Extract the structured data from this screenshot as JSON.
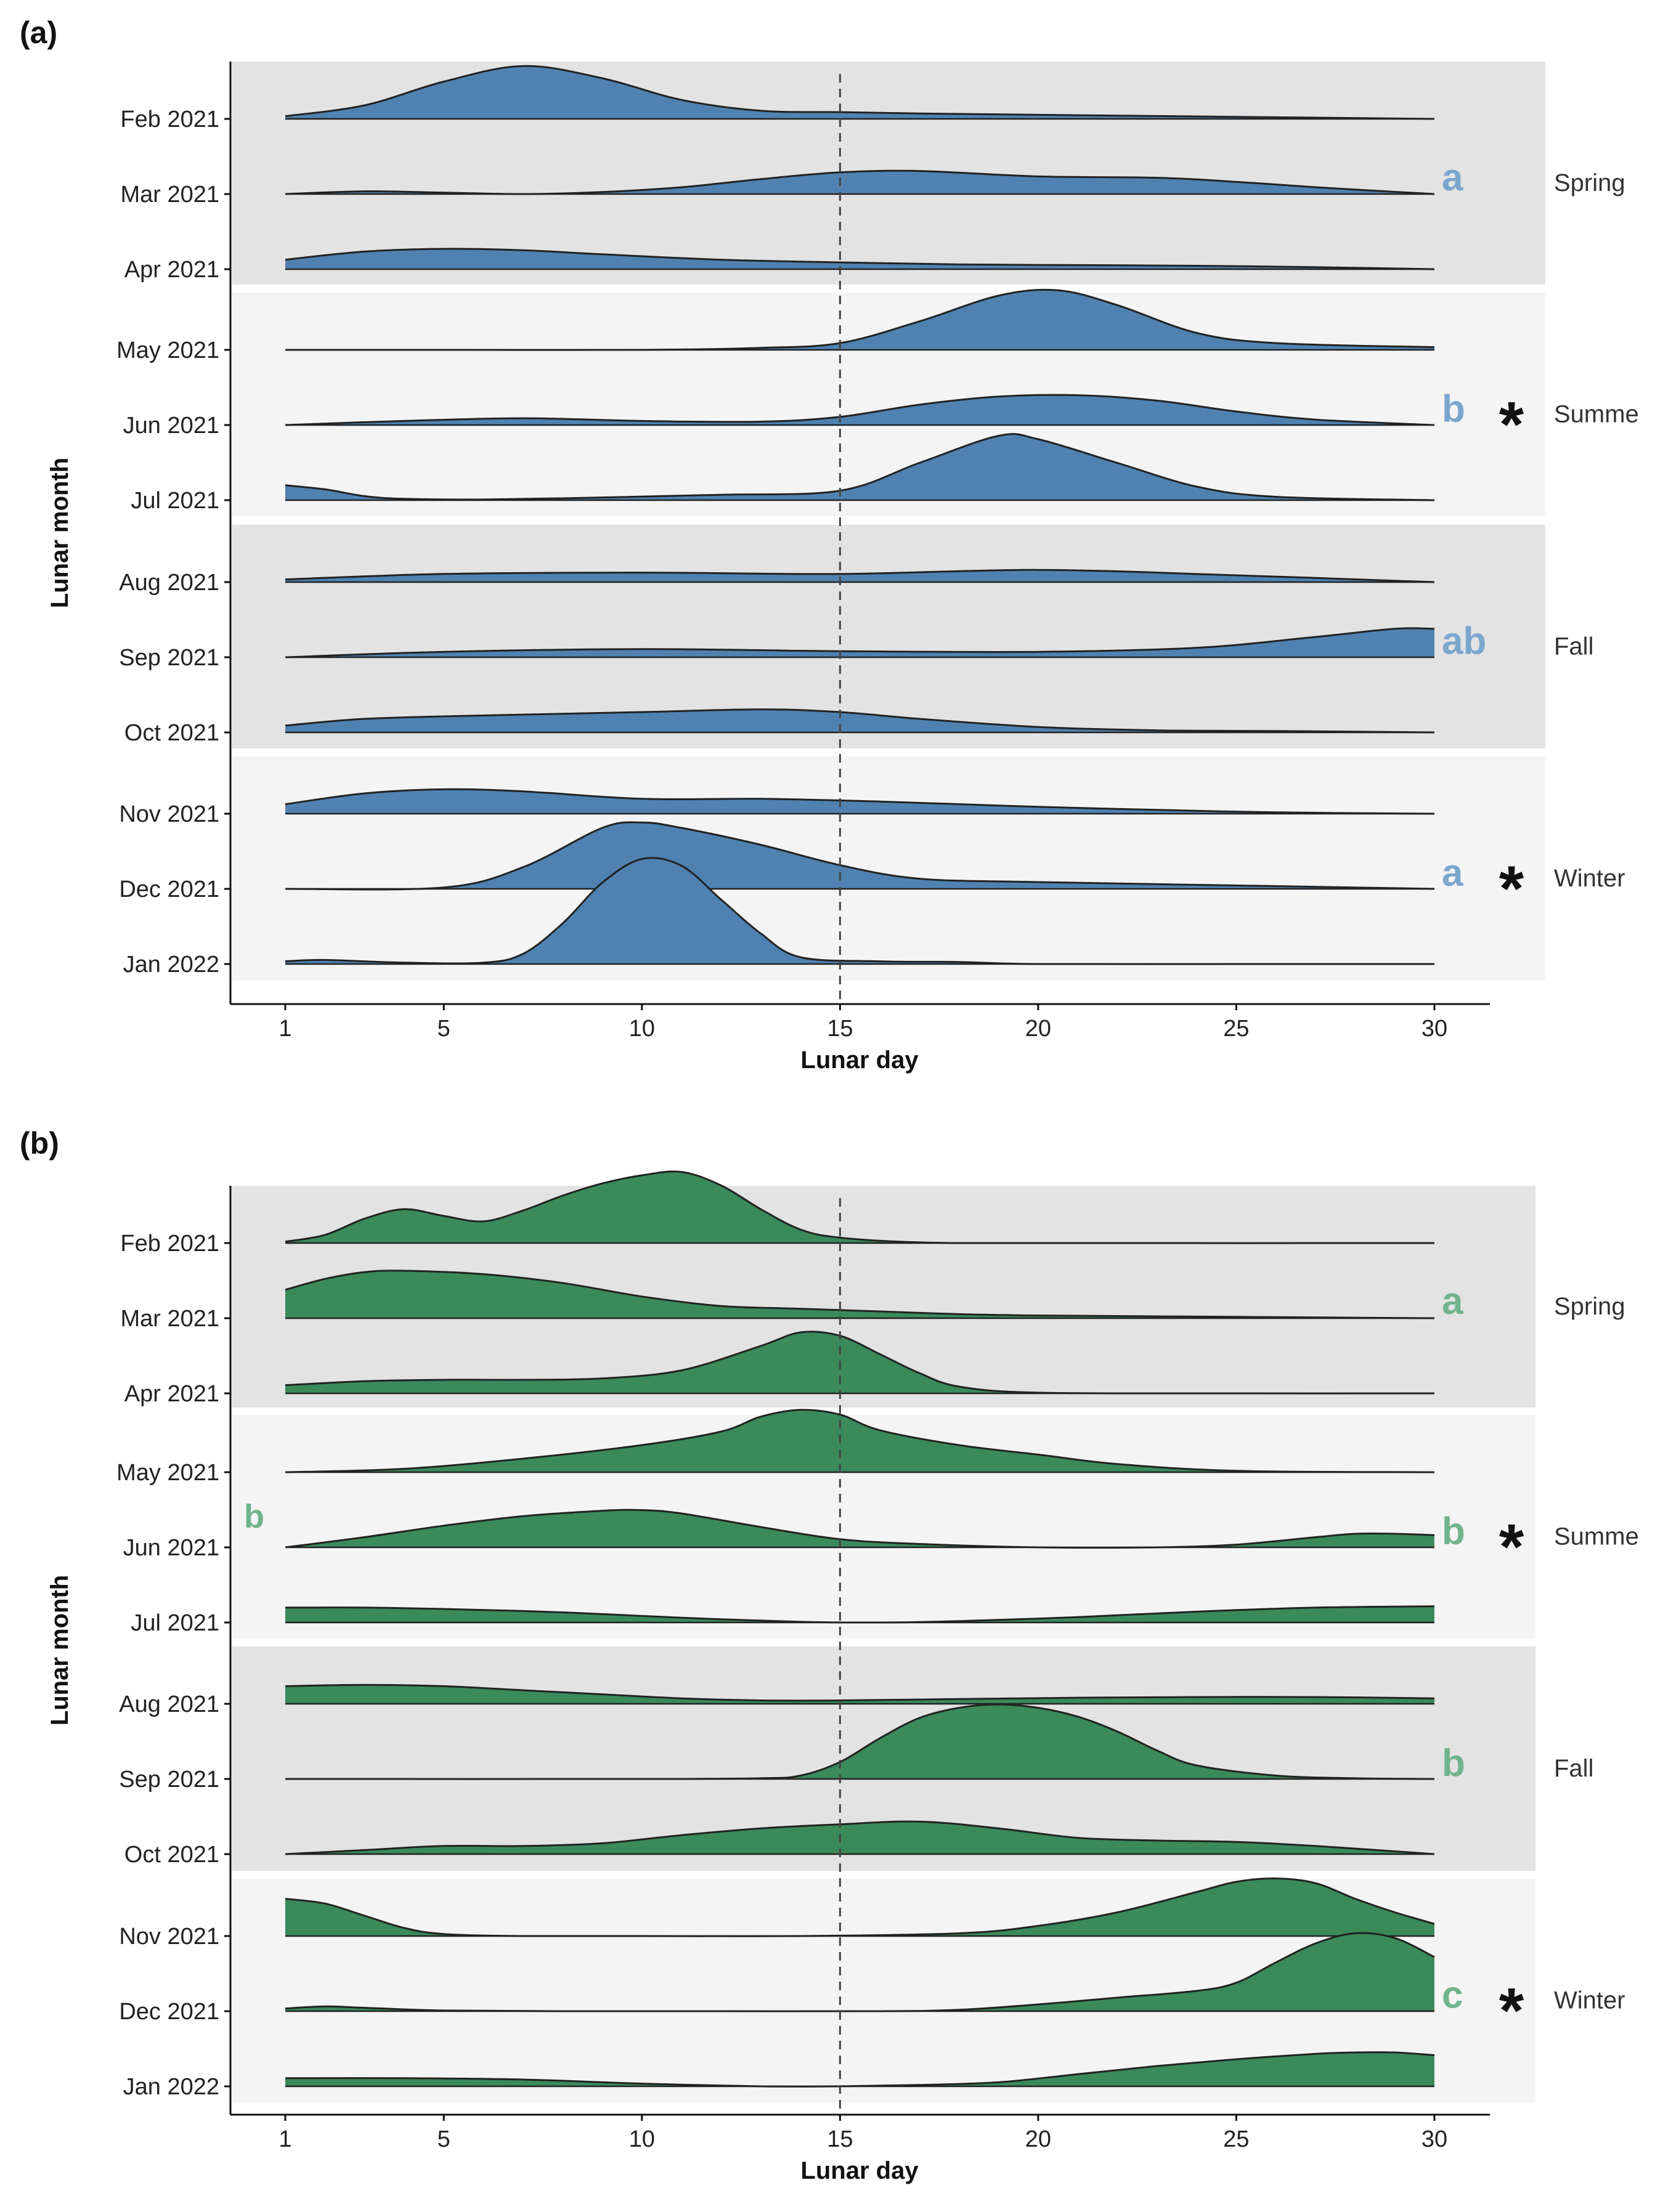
{
  "figure": {
    "panel_labels": [
      "(a)",
      "(b)"
    ],
    "colors": {
      "panel_a_fill": "#4f82b0",
      "panel_a_letter": "#7ba6ce",
      "panel_b_fill": "#3a8a5a",
      "panel_b_letter": "#70b48c",
      "band_dark": "#e3e3e3",
      "band_light": "#f4f4f4",
      "outline": "#222222"
    }
  },
  "chart_data": [
    {
      "type": "ridgeline",
      "panel": "(a)",
      "xlabel": "Lunar day",
      "ylabel": "Lunar month",
      "xlim": [
        1,
        30
      ],
      "xticks": [
        1,
        5,
        10,
        15,
        20,
        25,
        30
      ],
      "reference_line_x": 15,
      "categories": [
        "Feb 2021",
        "Mar 2021",
        "Apr 2021",
        "May 2021",
        "Jun 2021",
        "Jul 2021",
        "Aug 2021",
        "Sep 2021",
        "Oct 2021",
        "Nov 2021",
        "Dec 2021",
        "Jan 2022"
      ],
      "seasons": [
        {
          "name": "Spring",
          "months": [
            "Feb 2021",
            "Mar 2021",
            "Apr 2021"
          ],
          "letter": "a",
          "asterisk": ""
        },
        {
          "name": "Summe",
          "months": [
            "May 2021",
            "Jun 2021",
            "Jul 2021"
          ],
          "letter": "b",
          "asterisk": "*"
        },
        {
          "name": "Fall",
          "months": [
            "Aug 2021",
            "Sep 2021",
            "Oct 2021"
          ],
          "letter": "ab",
          "asterisk": ""
        },
        {
          "name": "Winter",
          "months": [
            "Nov 2021",
            "Dec 2021",
            "Jan 2022"
          ],
          "letter": "a",
          "asterisk": "*"
        }
      ],
      "extra_letter": "",
      "series": [
        {
          "name": "Feb 2021",
          "x": [
            1,
            3,
            5,
            7,
            9,
            11,
            13,
            15,
            17,
            20,
            25,
            30
          ],
          "y": [
            0.04,
            0.2,
            0.55,
            0.78,
            0.6,
            0.28,
            0.12,
            0.1,
            0.08,
            0.06,
            0.03,
            0.0
          ]
        },
        {
          "name": "Mar 2021",
          "x": [
            1,
            3,
            5,
            7,
            9,
            11,
            13,
            15,
            17,
            20,
            23,
            25,
            27,
            30
          ],
          "y": [
            0.0,
            0.04,
            0.02,
            0.0,
            0.03,
            0.1,
            0.22,
            0.32,
            0.34,
            0.26,
            0.24,
            0.18,
            0.1,
            0.0
          ]
        },
        {
          "name": "Apr 2021",
          "x": [
            1,
            3,
            5,
            7,
            9,
            12,
            15,
            18,
            21,
            24,
            27,
            30
          ],
          "y": [
            0.14,
            0.26,
            0.3,
            0.28,
            0.22,
            0.14,
            0.1,
            0.07,
            0.06,
            0.05,
            0.03,
            0.0
          ]
        },
        {
          "name": "May 2021",
          "x": [
            1,
            5,
            10,
            13,
            15,
            17,
            19,
            20.5,
            22,
            24,
            26,
            30
          ],
          "y": [
            0.0,
            0.0,
            0.0,
            0.03,
            0.1,
            0.42,
            0.8,
            0.88,
            0.66,
            0.25,
            0.1,
            0.04
          ]
        },
        {
          "name": "Jun 2021",
          "x": [
            1,
            4,
            7,
            10,
            13,
            15,
            17,
            19,
            21,
            23,
            25,
            27,
            30
          ],
          "y": [
            0.0,
            0.06,
            0.1,
            0.06,
            0.05,
            0.12,
            0.3,
            0.42,
            0.44,
            0.36,
            0.2,
            0.08,
            0.0
          ]
        },
        {
          "name": "Jul 2021",
          "x": [
            1,
            2,
            3,
            4,
            6,
            9,
            12,
            15,
            17,
            19,
            20,
            22,
            24,
            26,
            30
          ],
          "y": [
            0.22,
            0.16,
            0.06,
            0.02,
            0.01,
            0.04,
            0.08,
            0.14,
            0.55,
            0.95,
            0.9,
            0.55,
            0.2,
            0.05,
            0.0
          ]
        },
        {
          "name": "Aug 2021",
          "x": [
            1,
            5,
            10,
            15,
            20,
            25,
            30
          ],
          "y": [
            0.04,
            0.12,
            0.14,
            0.12,
            0.18,
            0.1,
            0.0
          ]
        },
        {
          "name": "Sep 2021",
          "x": [
            1,
            5,
            10,
            15,
            20,
            24,
            27,
            29,
            30
          ],
          "y": [
            0.0,
            0.08,
            0.12,
            0.09,
            0.08,
            0.14,
            0.3,
            0.42,
            0.42
          ]
        },
        {
          "name": "Oct 2021",
          "x": [
            1,
            3,
            6,
            10,
            13,
            15,
            17,
            20,
            23,
            26,
            30
          ],
          "y": [
            0.1,
            0.2,
            0.25,
            0.3,
            0.34,
            0.3,
            0.2,
            0.08,
            0.03,
            0.02,
            0.0
          ]
        },
        {
          "name": "Nov 2021",
          "x": [
            1,
            3,
            5,
            7,
            10,
            13,
            16,
            19,
            22,
            26,
            30
          ],
          "y": [
            0.14,
            0.3,
            0.36,
            0.33,
            0.22,
            0.22,
            0.18,
            0.12,
            0.07,
            0.02,
            0.0
          ]
        },
        {
          "name": "Dec 2021",
          "x": [
            1,
            5,
            7,
            9,
            10,
            11,
            13,
            15,
            17,
            20,
            25,
            30
          ],
          "y": [
            0.0,
            0.02,
            0.32,
            0.9,
            0.98,
            0.9,
            0.65,
            0.35,
            0.15,
            0.1,
            0.05,
            0.0
          ]
        },
        {
          "name": "Jan 2022",
          "x": [
            1,
            2,
            4,
            6,
            7,
            8,
            9,
            10,
            11,
            12,
            13,
            14,
            16,
            18,
            20,
            25,
            30
          ],
          "y": [
            0.04,
            0.06,
            0.02,
            0.02,
            0.15,
            0.6,
            1.2,
            1.55,
            1.45,
            0.95,
            0.45,
            0.1,
            0.04,
            0.03,
            0.0,
            0.0,
            0.0
          ]
        }
      ]
    },
    {
      "type": "ridgeline",
      "panel": "(b)",
      "xlabel": "Lunar day",
      "ylabel": "Lunar month",
      "xlim": [
        1,
        30
      ],
      "xticks": [
        1,
        5,
        10,
        15,
        20,
        25,
        30
      ],
      "reference_line_x": 15,
      "categories": [
        "Feb 2021",
        "Mar 2021",
        "Apr 2021",
        "May 2021",
        "Jun 2021",
        "Jul 2021",
        "Aug 2021",
        "Sep 2021",
        "Oct 2021",
        "Nov 2021",
        "Dec 2021",
        "Jan 2022"
      ],
      "seasons": [
        {
          "name": "Spring",
          "months": [
            "Feb 2021",
            "Mar 2021",
            "Apr 2021"
          ],
          "letter": "a",
          "asterisk": ""
        },
        {
          "name": "Summe",
          "months": [
            "May 2021",
            "Jun 2021",
            "Jul 2021"
          ],
          "letter": "b",
          "asterisk": "*"
        },
        {
          "name": "Fall",
          "months": [
            "Aug 2021",
            "Sep 2021",
            "Oct 2021"
          ],
          "letter": "b",
          "asterisk": ""
        },
        {
          "name": "Winter",
          "months": [
            "Nov 2021",
            "Dec 2021",
            "Jan 2022"
          ],
          "letter": "c",
          "asterisk": "*"
        }
      ],
      "extra_letter": "b",
      "series": [
        {
          "name": "Feb 2021",
          "x": [
            1,
            2,
            3,
            4,
            5,
            6,
            7,
            8,
            9,
            10,
            11,
            12,
            13,
            14,
            15,
            17,
            20,
            30
          ],
          "y": [
            0.02,
            0.12,
            0.36,
            0.5,
            0.4,
            0.32,
            0.48,
            0.7,
            0.88,
            1.0,
            1.05,
            0.85,
            0.5,
            0.2,
            0.08,
            0.01,
            0.0,
            0.0
          ]
        },
        {
          "name": "Mar 2021",
          "x": [
            1,
            2,
            3,
            4,
            6,
            8,
            10,
            12,
            14,
            16,
            18,
            20,
            25,
            30
          ],
          "y": [
            0.42,
            0.58,
            0.68,
            0.7,
            0.65,
            0.52,
            0.32,
            0.18,
            0.14,
            0.1,
            0.06,
            0.04,
            0.02,
            0.0
          ]
        },
        {
          "name": "Apr 2021",
          "x": [
            1,
            3,
            5,
            7,
            9,
            11,
            13,
            14,
            15,
            16,
            17,
            18,
            20,
            25,
            30
          ],
          "y": [
            0.12,
            0.18,
            0.2,
            0.2,
            0.22,
            0.34,
            0.7,
            0.9,
            0.85,
            0.58,
            0.3,
            0.1,
            0.01,
            0.0,
            0.0
          ]
        },
        {
          "name": "May 2021",
          "x": [
            1,
            4,
            7,
            10,
            12,
            13,
            14,
            15,
            16,
            18,
            20,
            22,
            25,
            30
          ],
          "y": [
            0.0,
            0.05,
            0.2,
            0.4,
            0.6,
            0.82,
            0.92,
            0.85,
            0.62,
            0.4,
            0.26,
            0.12,
            0.02,
            0.0
          ]
        },
        {
          "name": "Jun 2021",
          "x": [
            1,
            3,
            5,
            7,
            9,
            10,
            11,
            13,
            15,
            17,
            20,
            23,
            25,
            27,
            28,
            29,
            30
          ],
          "y": [
            0.0,
            0.15,
            0.32,
            0.46,
            0.54,
            0.55,
            0.5,
            0.3,
            0.12,
            0.05,
            0.0,
            0.0,
            0.04,
            0.15,
            0.2,
            0.2,
            0.18
          ]
        },
        {
          "name": "Jul 2021",
          "x": [
            1,
            3,
            5,
            8,
            11,
            14,
            16,
            18,
            21,
            24,
            27,
            30
          ],
          "y": [
            0.22,
            0.22,
            0.2,
            0.15,
            0.07,
            0.01,
            0.0,
            0.02,
            0.08,
            0.16,
            0.22,
            0.24
          ]
        },
        {
          "name": "Aug 2021",
          "x": [
            1,
            3,
            5,
            7,
            9,
            11,
            13,
            15,
            18,
            21,
            24,
            27,
            30
          ],
          "y": [
            0.26,
            0.28,
            0.26,
            0.2,
            0.14,
            0.08,
            0.05,
            0.05,
            0.07,
            0.09,
            0.1,
            0.1,
            0.08
          ]
        },
        {
          "name": "Sep 2021",
          "x": [
            1,
            10,
            13,
            14,
            15,
            16,
            17,
            18,
            19,
            20,
            21,
            22,
            23,
            24,
            26,
            28,
            30
          ],
          "y": [
            0.0,
            0.0,
            0.01,
            0.05,
            0.25,
            0.6,
            0.9,
            1.05,
            1.1,
            1.05,
            0.92,
            0.7,
            0.42,
            0.2,
            0.05,
            0.01,
            0.0
          ]
        },
        {
          "name": "Oct 2021",
          "x": [
            1,
            3,
            5,
            7,
            9,
            11,
            13,
            15,
            17,
            19,
            21,
            23,
            25,
            27,
            30
          ],
          "y": [
            0.0,
            0.06,
            0.12,
            0.12,
            0.16,
            0.28,
            0.38,
            0.44,
            0.48,
            0.38,
            0.24,
            0.2,
            0.18,
            0.12,
            0.0
          ]
        },
        {
          "name": "Nov 2021",
          "x": [
            1,
            2,
            3,
            4,
            5,
            7,
            10,
            14,
            18,
            20,
            22,
            24,
            25,
            26,
            27,
            28,
            29,
            30
          ],
          "y": [
            0.55,
            0.48,
            0.3,
            0.12,
            0.03,
            0.0,
            0.0,
            0.0,
            0.04,
            0.15,
            0.35,
            0.65,
            0.8,
            0.85,
            0.78,
            0.55,
            0.35,
            0.18
          ]
        },
        {
          "name": "Dec 2021",
          "x": [
            1,
            2,
            3,
            5,
            8,
            12,
            16,
            18,
            20,
            22,
            24,
            25,
            26,
            27,
            28,
            29,
            30
          ],
          "y": [
            0.04,
            0.07,
            0.05,
            0.01,
            0.0,
            0.0,
            0.0,
            0.02,
            0.1,
            0.2,
            0.3,
            0.42,
            0.72,
            1.0,
            1.15,
            1.08,
            0.8
          ]
        },
        {
          "name": "Jan 2022",
          "x": [
            1,
            4,
            7,
            10,
            13,
            15,
            17,
            19,
            21,
            23,
            25,
            27,
            28,
            29,
            30
          ],
          "y": [
            0.12,
            0.12,
            0.1,
            0.04,
            0.0,
            0.0,
            0.02,
            0.06,
            0.18,
            0.3,
            0.4,
            0.48,
            0.5,
            0.5,
            0.46
          ]
        }
      ]
    }
  ]
}
